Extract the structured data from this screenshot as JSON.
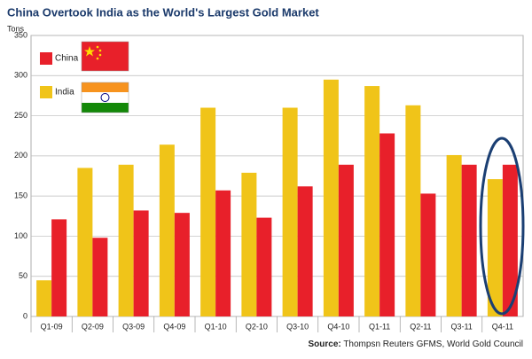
{
  "chart_data": {
    "type": "bar",
    "title": "China Overtook India as the World's Largest Gold Market",
    "y_label": "Tons",
    "categories": [
      "Q1-09",
      "Q2-09",
      "Q3-09",
      "Q4-09",
      "Q1-10",
      "Q2-10",
      "Q3-10",
      "Q4-10",
      "Q1-11",
      "Q2-11",
      "Q3-11",
      "Q4-11"
    ],
    "series": [
      {
        "name": "India",
        "color": "#f0c419",
        "values": [
          45,
          185,
          189,
          214,
          260,
          179,
          260,
          295,
          287,
          263,
          201,
          171
        ]
      },
      {
        "name": "China",
        "color": "#e8202a",
        "values": [
          121,
          98,
          132,
          129,
          157,
          123,
          162,
          189,
          228,
          153,
          189,
          189
        ]
      }
    ],
    "ylim": [
      0,
      350
    ],
    "yticks": [
      0,
      50,
      100,
      150,
      200,
      250,
      300,
      350
    ],
    "grid": true,
    "source_label": "Source:",
    "source": "Thompsn Reuters GFMS, World Gold Council"
  }
}
